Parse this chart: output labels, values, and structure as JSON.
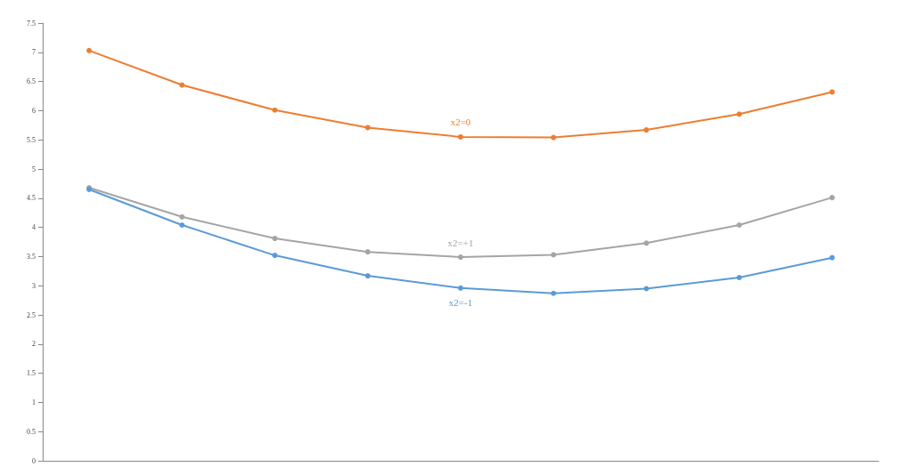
{
  "chart_data": {
    "type": "line",
    "categories": [
      null,
      null,
      null,
      null,
      null,
      null,
      null,
      null,
      null
    ],
    "series": [
      {
        "name": "x2=0",
        "color": "#ed7d31",
        "values": [
          7.03,
          6.44,
          6.01,
          5.71,
          5.55,
          5.54,
          5.67,
          5.94,
          6.32
        ]
      },
      {
        "name": "x2=+1",
        "color": "#a5a5a5",
        "values": [
          4.68,
          4.18,
          3.81,
          3.58,
          3.49,
          3.53,
          3.73,
          4.04,
          4.51
        ]
      },
      {
        "name": "x2=-1",
        "color": "#5b9bd5",
        "values": [
          4.65,
          4.04,
          3.52,
          3.17,
          2.96,
          2.87,
          2.95,
          3.14,
          3.48
        ]
      }
    ],
    "ylim": [
      0,
      7.5
    ],
    "yticks": [
      0,
      0.5,
      1,
      1.5,
      2,
      2.5,
      3,
      3.5,
      4,
      4.5,
      5,
      5.5,
      6,
      6.5,
      7,
      7.5
    ],
    "grid": false,
    "marker": "circle",
    "legend": false
  }
}
